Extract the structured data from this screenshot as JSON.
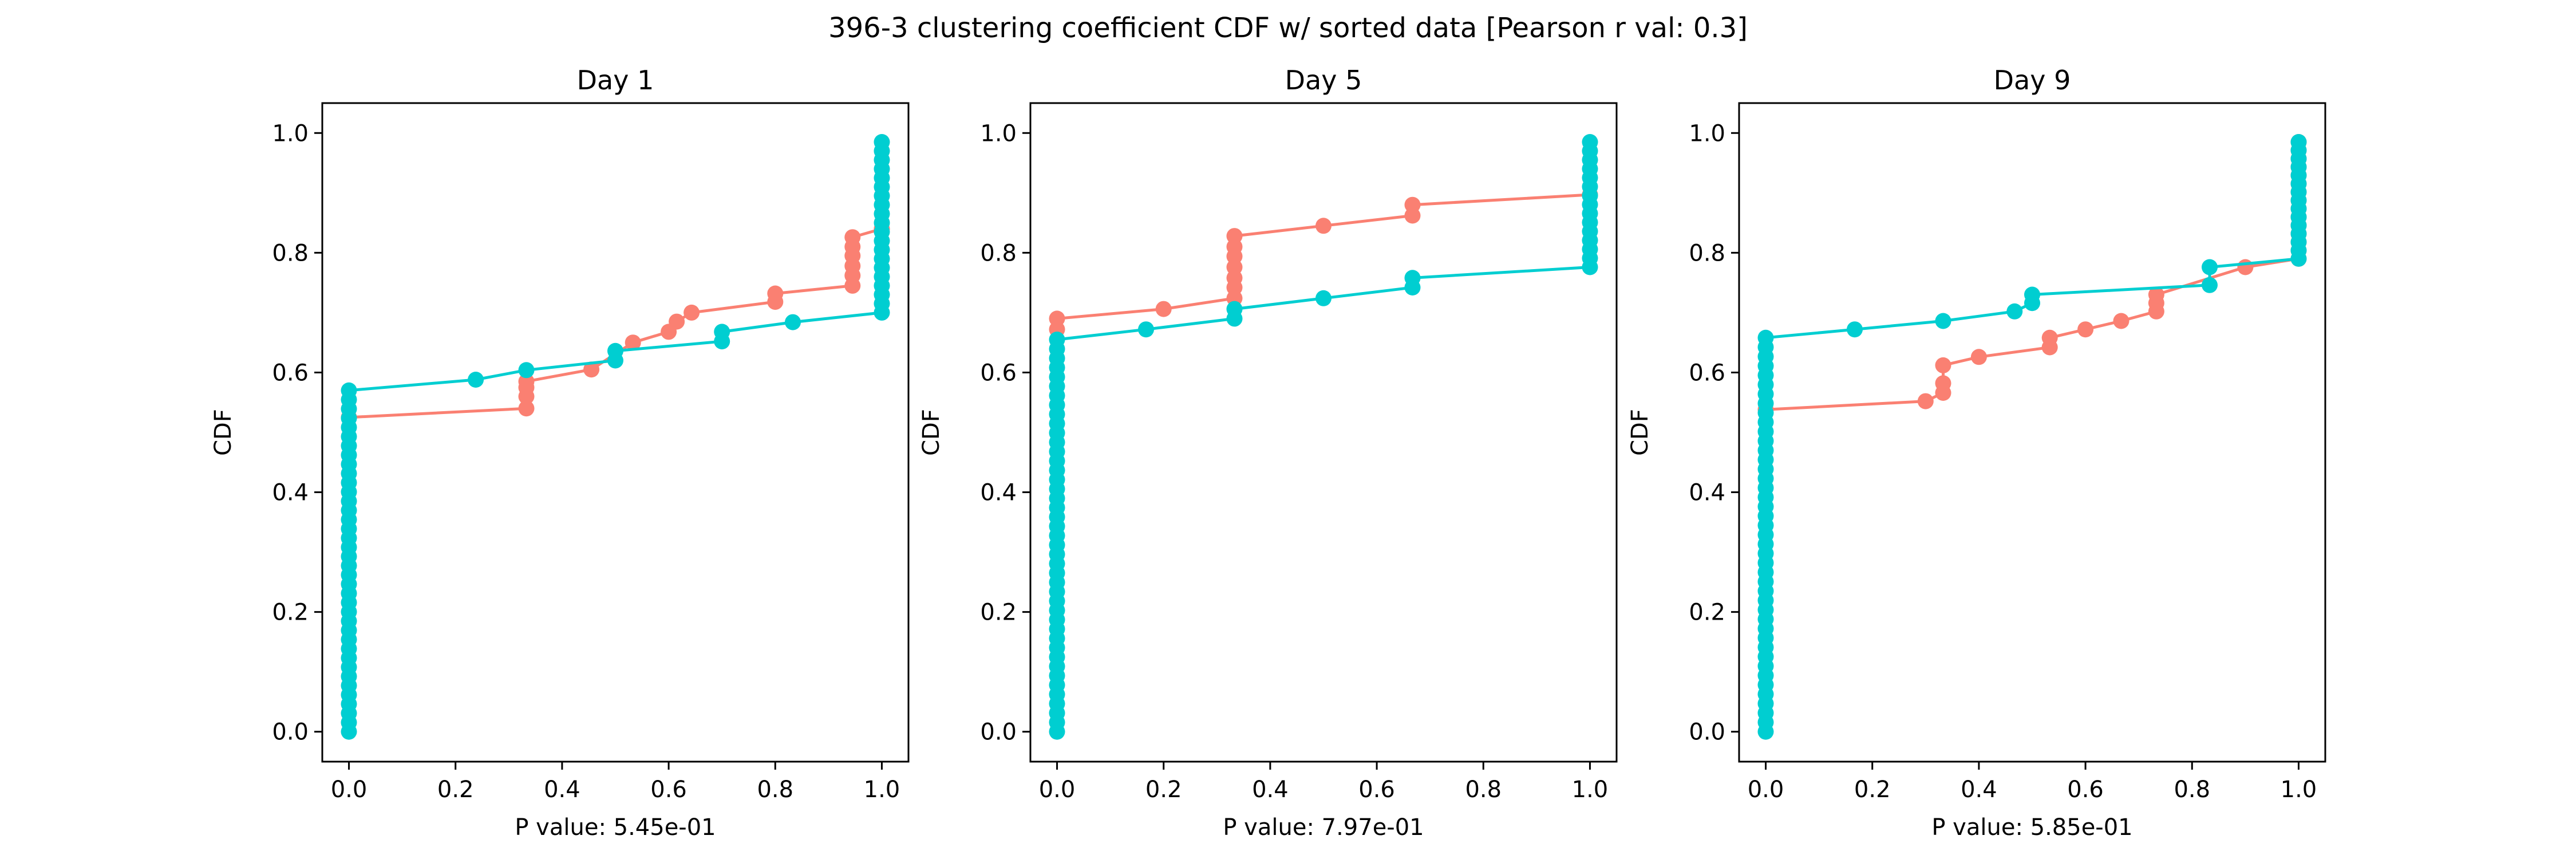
{
  "figure": {
    "title": "396-3 clustering coefficient CDF w/ sorted data [Pearson r val: 0.3]"
  },
  "colors": {
    "series_a": "#fa8072",
    "series_b": "#00ced1",
    "axes": "#000000"
  },
  "chart_data": [
    {
      "type": "line",
      "title": "Day 1",
      "xlabel": "P value: 5.45e-01",
      "ylabel": "CDF",
      "xlim": [
        -0.05,
        1.05
      ],
      "ylim": [
        -0.05,
        1.05
      ],
      "xticks": [
        "0.0",
        "0.2",
        "0.4",
        "0.6",
        "0.8",
        "1.0"
      ],
      "yticks": [
        "0.0",
        "0.2",
        "0.4",
        "0.6",
        "0.8",
        "1.0"
      ],
      "grid": false,
      "series": [
        {
          "color": "#fa8072",
          "x": [
            0.0,
            0.333,
            0.333,
            0.333,
            0.333,
            0.455,
            0.533,
            0.6,
            0.615,
            0.643,
            0.8,
            0.8,
            0.945,
            0.945,
            0.945,
            0.945,
            0.945,
            0.945,
            1.0
          ],
          "y": [
            0.525,
            0.54,
            0.56,
            0.575,
            0.585,
            0.605,
            0.65,
            0.668,
            0.685,
            0.7,
            0.718,
            0.732,
            0.745,
            0.762,
            0.778,
            0.795,
            0.81,
            0.826,
            0.84
          ]
        },
        {
          "color": "#00ced1",
          "x": [
            0.0,
            0.238,
            0.333,
            0.5,
            0.5,
            0.7,
            0.7,
            0.833,
            1.0
          ],
          "y": [
            0.57,
            0.588,
            0.604,
            0.62,
            0.636,
            0.652,
            0.668,
            0.684,
            0.7
          ],
          "vertical_markers": [
            {
              "x": 0.0,
              "from": 0.0,
              "to": 0.57,
              "count": 37
            },
            {
              "x": 1.0,
              "from": 0.7,
              "to": 0.985,
              "count": 19
            }
          ]
        }
      ]
    },
    {
      "type": "line",
      "title": "Day 5",
      "xlabel": "P value: 7.97e-01",
      "ylabel": "CDF",
      "xlim": [
        -0.05,
        1.05
      ],
      "ylim": [
        -0.05,
        1.05
      ],
      "xticks": [
        "0.0",
        "0.2",
        "0.4",
        "0.6",
        "0.8",
        "1.0"
      ],
      "yticks": [
        "0.0",
        "0.2",
        "0.4",
        "0.6",
        "0.8",
        "1.0"
      ],
      "grid": false,
      "series": [
        {
          "color": "#fa8072",
          "x": [
            0.0,
            0.0,
            0.2,
            0.333,
            0.333,
            0.333,
            0.333,
            0.333,
            0.333,
            0.333,
            0.5,
            0.667,
            0.667,
            1.0
          ],
          "y": [
            0.672,
            0.69,
            0.706,
            0.724,
            0.742,
            0.758,
            0.776,
            0.794,
            0.81,
            0.828,
            0.845,
            0.862,
            0.88,
            0.897
          ]
        },
        {
          "color": "#00ced1",
          "x": [
            0.0,
            0.167,
            0.333,
            0.333,
            0.5,
            0.667,
            0.667,
            1.0
          ],
          "y": [
            0.655,
            0.672,
            0.69,
            0.706,
            0.724,
            0.742,
            0.758,
            0.776
          ],
          "vertical_markers": [
            {
              "x": 0.0,
              "from": 0.0,
              "to": 0.655,
              "count": 42
            },
            {
              "x": 1.0,
              "from": 0.776,
              "to": 0.985,
              "count": 14
            }
          ]
        }
      ]
    },
    {
      "type": "line",
      "title": "Day 9",
      "xlabel": "P value: 5.85e-01",
      "ylabel": "CDF",
      "xlim": [
        -0.05,
        1.05
      ],
      "ylim": [
        -0.05,
        1.05
      ],
      "xticks": [
        "0.0",
        "0.2",
        "0.4",
        "0.6",
        "0.8",
        "1.0"
      ],
      "yticks": [
        "0.0",
        "0.2",
        "0.4",
        "0.6",
        "0.8",
        "1.0"
      ],
      "grid": false,
      "series": [
        {
          "color": "#fa8072",
          "x": [
            0.0,
            0.3,
            0.333,
            0.333,
            0.333,
            0.4,
            0.533,
            0.533,
            0.6,
            0.667,
            0.733,
            0.733,
            0.733,
            0.9,
            1.0
          ],
          "y": [
            0.538,
            0.552,
            0.566,
            0.582,
            0.612,
            0.626,
            0.642,
            0.658,
            0.672,
            0.686,
            0.702,
            0.716,
            0.73,
            0.776,
            0.79
          ],
          "vertical_markers": [
            {
              "x": 1.0,
              "from": 0.79,
              "to": 0.985,
              "count": 14
            }
          ]
        },
        {
          "color": "#00ced1",
          "x": [
            0.0,
            0.167,
            0.333,
            0.467,
            0.5,
            0.5,
            0.833,
            0.833,
            1.0
          ],
          "y": [
            0.658,
            0.672,
            0.686,
            0.702,
            0.716,
            0.73,
            0.746,
            0.776,
            0.79
          ],
          "vertical_markers": [
            {
              "x": 0.0,
              "from": 0.0,
              "to": 0.658,
              "count": 42
            },
            {
              "x": 1.0,
              "from": 0.79,
              "to": 0.985,
              "count": 14
            }
          ]
        }
      ]
    }
  ]
}
